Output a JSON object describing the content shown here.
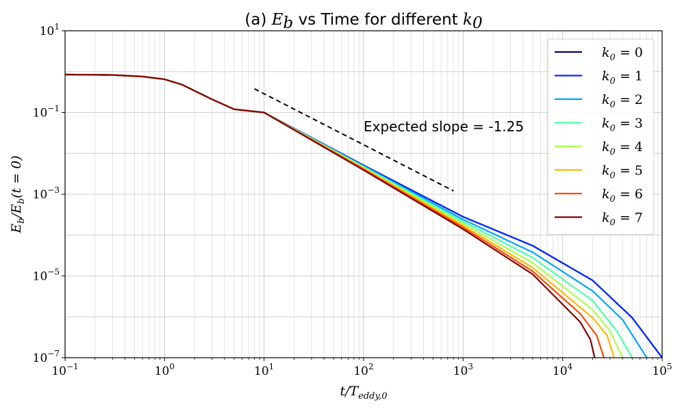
{
  "chart_data": {
    "type": "line",
    "title": "(a) E_b vs Time for different k_0",
    "title_parts": {
      "prefix": "(a) ",
      "var": "E",
      "var_sub": "b",
      "middle": " vs Time for different ",
      "var2": "k",
      "var2_sub": "0"
    },
    "xlabel": "t/T_eddy,0",
    "ylabel": "E_b/E_b(t = 0)",
    "xscale": "log",
    "yscale": "log",
    "xlim": [
      0.1,
      100000
    ],
    "ylim": [
      1e-07,
      10
    ],
    "grid": true,
    "legend_location": "top-right",
    "x_ticks": [
      {
        "base": "10",
        "exp": "−1",
        "value": 0.1
      },
      {
        "base": "10",
        "exp": "0",
        "value": 1
      },
      {
        "base": "10",
        "exp": "1",
        "value": 10
      },
      {
        "base": "10",
        "exp": "2",
        "value": 100
      },
      {
        "base": "10",
        "exp": "3",
        "value": 1000
      },
      {
        "base": "10",
        "exp": "4",
        "value": 10000
      },
      {
        "base": "10",
        "exp": "5",
        "value": 100000
      }
    ],
    "y_ticks": [
      {
        "base": "10",
        "exp": "1",
        "value": 10
      },
      {
        "base": "10",
        "exp": "−1",
        "value": 0.1
      },
      {
        "base": "10",
        "exp": "−3",
        "value": 0.001
      },
      {
        "base": "10",
        "exp": "−5",
        "value": 1e-05
      },
      {
        "base": "10",
        "exp": "−7",
        "value": 1e-07
      }
    ],
    "reference_line": {
      "label": "Expected slope = -1.25",
      "style": "dashed",
      "color": "#000000",
      "points": [
        [
          8,
          0.38
        ],
        [
          800,
          0.00121
        ]
      ],
      "label_anchor": [
        100,
        0.045
      ]
    },
    "series": [
      {
        "name": "k_0 = 0",
        "legend_label": "k0 = 0",
        "color": "#00007f",
        "points": [
          [
            0.1,
            0.85
          ],
          [
            0.3,
            0.83
          ],
          [
            0.6,
            0.76
          ],
          [
            1,
            0.65
          ],
          [
            1.5,
            0.48
          ],
          [
            2,
            0.34
          ],
          [
            3,
            0.21
          ],
          [
            5,
            0.12
          ],
          [
            10,
            0.1
          ],
          [
            100,
            0.0051
          ],
          [
            1000,
            0.00028
          ],
          [
            5000,
            5.5e-05
          ],
          [
            20000,
            7.8e-06
          ],
          [
            50000,
            9.5e-07
          ],
          [
            100000,
            1e-07
          ]
        ]
      },
      {
        "name": "k_0 = 1",
        "legend_label": "k0 = 1",
        "color": "#0029ff",
        "points": [
          [
            0.1,
            0.85
          ],
          [
            0.3,
            0.83
          ],
          [
            0.6,
            0.76
          ],
          [
            1,
            0.65
          ],
          [
            1.5,
            0.48
          ],
          [
            2,
            0.34
          ],
          [
            3,
            0.21
          ],
          [
            5,
            0.12
          ],
          [
            10,
            0.1
          ],
          [
            100,
            0.0051
          ],
          [
            1000,
            0.00028
          ],
          [
            5000,
            5.5e-05
          ],
          [
            20000,
            7.8e-06
          ],
          [
            50000,
            9.5e-07
          ],
          [
            100000,
            1e-07
          ]
        ]
      },
      {
        "name": "k_0 = 2",
        "legend_label": "k0 = 2",
        "color": "#00a4ff",
        "points": [
          [
            0.1,
            0.85
          ],
          [
            0.3,
            0.83
          ],
          [
            0.6,
            0.76
          ],
          [
            1,
            0.65
          ],
          [
            1.5,
            0.48
          ],
          [
            2,
            0.34
          ],
          [
            3,
            0.21
          ],
          [
            5,
            0.12
          ],
          [
            10,
            0.1
          ],
          [
            100,
            0.0049
          ],
          [
            1000,
            0.00024
          ],
          [
            5000,
            3.8e-05
          ],
          [
            20000,
            4.3e-06
          ],
          [
            40000,
            8.5e-07
          ],
          [
            70000,
            1e-07
          ]
        ]
      },
      {
        "name": "k_0 = 3",
        "legend_label": "k0 = 3",
        "color": "#4dffaa",
        "points": [
          [
            0.1,
            0.85
          ],
          [
            0.3,
            0.83
          ],
          [
            0.6,
            0.76
          ],
          [
            1,
            0.65
          ],
          [
            1.5,
            0.48
          ],
          [
            2,
            0.34
          ],
          [
            3,
            0.21
          ],
          [
            5,
            0.12
          ],
          [
            10,
            0.1
          ],
          [
            100,
            0.0047
          ],
          [
            1000,
            0.000215
          ],
          [
            5000,
            2.8e-05
          ],
          [
            20000,
            2.5e-06
          ],
          [
            35000,
            4.5e-07
          ],
          [
            50000,
            1e-07
          ]
        ]
      },
      {
        "name": "k_0 = 4",
        "legend_label": "k0 = 4",
        "color": "#aaff4d",
        "points": [
          [
            0.1,
            0.85
          ],
          [
            0.3,
            0.83
          ],
          [
            0.6,
            0.76
          ],
          [
            1,
            0.65
          ],
          [
            1.5,
            0.48
          ],
          [
            2,
            0.34
          ],
          [
            3,
            0.21
          ],
          [
            5,
            0.12
          ],
          [
            10,
            0.1
          ],
          [
            100,
            0.0045
          ],
          [
            1000,
            0.00019
          ],
          [
            5000,
            2.1e-05
          ],
          [
            20000,
            1.5e-06
          ],
          [
            30000,
            4.5e-07
          ],
          [
            40000,
            1e-07
          ]
        ]
      },
      {
        "name": "k_0 = 5",
        "legend_label": "k0 = 5",
        "color": "#ffb900",
        "points": [
          [
            0.1,
            0.85
          ],
          [
            0.3,
            0.83
          ],
          [
            0.6,
            0.76
          ],
          [
            1,
            0.65
          ],
          [
            1.5,
            0.48
          ],
          [
            2,
            0.34
          ],
          [
            3,
            0.21
          ],
          [
            5,
            0.12
          ],
          [
            10,
            0.1
          ],
          [
            100,
            0.0043
          ],
          [
            1000,
            0.00017
          ],
          [
            5000,
            1.6e-05
          ],
          [
            20000,
            9.5e-07
          ],
          [
            28000,
            3.5e-07
          ],
          [
            33000,
            1e-07
          ]
        ]
      },
      {
        "name": "k_0 = 6",
        "legend_label": "k0 = 6",
        "color": "#ff4800",
        "points": [
          [
            0.1,
            0.85
          ],
          [
            0.3,
            0.83
          ],
          [
            0.6,
            0.76
          ],
          [
            1,
            0.65
          ],
          [
            1.5,
            0.48
          ],
          [
            2,
            0.34
          ],
          [
            3,
            0.21
          ],
          [
            5,
            0.12
          ],
          [
            10,
            0.1
          ],
          [
            100,
            0.0041
          ],
          [
            1000,
            0.000155
          ],
          [
            5000,
            1.3e-05
          ],
          [
            15000,
            1.2e-06
          ],
          [
            22000,
            3.5e-07
          ],
          [
            26000,
            1e-07
          ]
        ]
      },
      {
        "name": "k_0 = 7",
        "legend_label": "k0 = 7",
        "color": "#7f0000",
        "points": [
          [
            0.1,
            0.85
          ],
          [
            0.3,
            0.83
          ],
          [
            0.6,
            0.76
          ],
          [
            1,
            0.65
          ],
          [
            1.5,
            0.48
          ],
          [
            2,
            0.34
          ],
          [
            3,
            0.21
          ],
          [
            5,
            0.12
          ],
          [
            10,
            0.1
          ],
          [
            100,
            0.0039
          ],
          [
            1000,
            0.00014
          ],
          [
            5000,
            1.1e-05
          ],
          [
            15000,
            7.5e-07
          ],
          [
            19000,
            2.8e-07
          ],
          [
            21000,
            1e-07
          ]
        ]
      }
    ]
  }
}
